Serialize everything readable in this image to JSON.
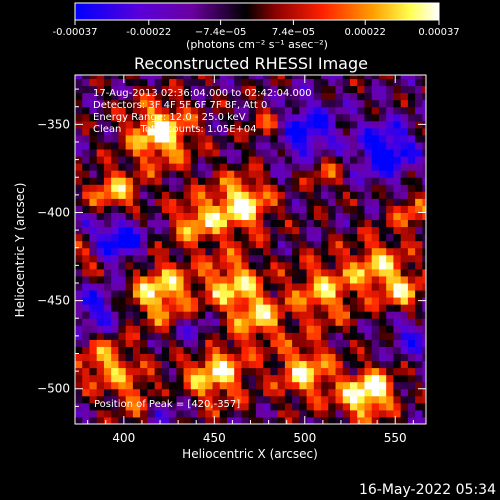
{
  "chart_data": {
    "type": "heatmap",
    "title": "Reconstructed RHESSI Image",
    "xlabel": "Heliocentric X (arcsec)",
    "ylabel": "Heliocentric Y (arcsec)",
    "xlim": [
      373,
      567
    ],
    "ylim": [
      -520,
      -322
    ],
    "x_ticks": [
      400,
      450,
      500,
      550
    ],
    "y_ticks": [
      -350,
      -400,
      -450,
      -500
    ],
    "colorbar": {
      "ticks": [
        "-0.00037",
        "-0.00022",
        "−7.4e−05",
        "7.4e−05",
        "0.00022",
        "0.00037"
      ],
      "tick_values": [
        -0.00037,
        -0.00022,
        -7.4e-05,
        7.4e-05,
        0.00022,
        0.00037
      ],
      "range": [
        -0.00037,
        0.00037
      ],
      "unit_label": "(photons cm⁻² s⁻¹ asec⁻²)",
      "colors": [
        "#0000ff",
        "#6a00c8",
        "#000000",
        "#c80000",
        "#ff7800",
        "#ffff64",
        "#ffffff"
      ]
    },
    "annotations": [
      "17-Aug-2013 02:36:04.000 to 02:42:04.000",
      "Detectors: 3F 4F 5F 6F 7F 8F, Att 0",
      "Energy Range: 12.0 - 25.0 keV",
      "Clean      Total counts: 1.05E+04"
    ],
    "peak_label": "Position of Peak = [420,-357]",
    "peak_position": [
      420,
      -357
    ],
    "grid": false
  },
  "footer": {
    "date": "16-May-2022 05:34"
  }
}
